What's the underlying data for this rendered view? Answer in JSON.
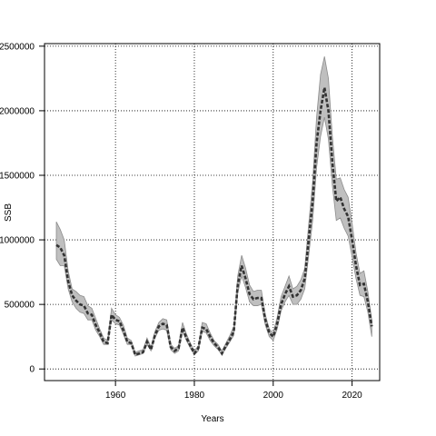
{
  "chart_data": {
    "type": "line",
    "title": "",
    "xlabel": "Years",
    "ylabel": "SSB",
    "xlim": [
      1942,
      2027
    ],
    "ylim": [
      -90000,
      2520000
    ],
    "x_ticks": [
      1960,
      1980,
      2000,
      2020
    ],
    "y_ticks": [
      0,
      500000,
      1000000,
      1500000,
      2000000,
      2500000
    ],
    "y_tick_labels": [
      "0",
      "500000",
      "1000000",
      "1500000",
      "2000000",
      "2500000"
    ],
    "grid": true,
    "grid_style": "dotted",
    "colors": {
      "line": "#333333",
      "band": "#bfbfbf",
      "band_edge": "#8c8c8c",
      "frame": "#000000"
    },
    "series": [
      {
        "line_style": "dashed",
        "x": [
          1945,
          1946,
          1947,
          1948,
          1949,
          1950,
          1951,
          1952,
          1953,
          1954,
          1955,
          1956,
          1957,
          1958,
          1959,
          1960,
          1961,
          1962,
          1963,
          1964,
          1965,
          1966,
          1967,
          1968,
          1969,
          1970,
          1971,
          1972,
          1973,
          1974,
          1975,
          1976,
          1977,
          1978,
          1979,
          1980,
          1981,
          1982,
          1983,
          1984,
          1985,
          1986,
          1987,
          1988,
          1989,
          1990,
          1991,
          1992,
          1993,
          1994,
          1995,
          1996,
          1997,
          1998,
          1999,
          2000,
          2001,
          2002,
          2003,
          2004,
          2005,
          2006,
          2007,
          2008,
          2009,
          2010,
          2011,
          2012,
          2013,
          2014,
          2015,
          2016,
          2017,
          2018,
          2019,
          2020,
          2021,
          2022,
          2023,
          2024,
          2025
        ],
        "values": [
          960000,
          940000,
          880000,
          680000,
          570000,
          530000,
          500000,
          490000,
          430000,
          420000,
          340000,
          280000,
          210000,
          200000,
          420000,
          380000,
          370000,
          300000,
          210000,
          200000,
          110000,
          120000,
          130000,
          210000,
          150000,
          260000,
          330000,
          350000,
          340000,
          170000,
          140000,
          160000,
          320000,
          240000,
          180000,
          120000,
          160000,
          320000,
          310000,
          250000,
          200000,
          170000,
          120000,
          180000,
          230000,
          290000,
          650000,
          800000,
          700000,
          580000,
          540000,
          550000,
          550000,
          380000,
          280000,
          250000,
          350000,
          500000,
          580000,
          640000,
          560000,
          570000,
          610000,
          700000,
          1000000,
          1300000,
          1750000,
          2000000,
          2180000,
          2000000,
          1600000,
          1300000,
          1330000,
          1240000,
          1180000,
          1000000,
          800000,
          650000,
          660000,
          520000,
          330000
        ],
        "lower": [
          850000,
          800000,
          800000,
          620000,
          520000,
          470000,
          440000,
          430000,
          380000,
          380000,
          300000,
          250000,
          190000,
          190000,
          380000,
          350000,
          340000,
          270000,
          190000,
          190000,
          100000,
          110000,
          120000,
          190000,
          140000,
          240000,
          300000,
          310000,
          300000,
          150000,
          120000,
          140000,
          290000,
          220000,
          160000,
          110000,
          140000,
          290000,
          280000,
          220000,
          180000,
          150000,
          110000,
          160000,
          210000,
          260000,
          590000,
          720000,
          630000,
          520000,
          490000,
          490000,
          500000,
          340000,
          250000,
          220000,
          310000,
          450000,
          520000,
          570000,
          500000,
          500000,
          540000,
          620000,
          880000,
          1150000,
          1560000,
          1800000,
          1950000,
          1780000,
          1420000,
          1150000,
          1170000,
          1090000,
          1030000,
          870000,
          700000,
          570000,
          560000,
          440000,
          250000
        ],
        "upper": [
          1140000,
          1080000,
          1000000,
          760000,
          620000,
          600000,
          570000,
          560000,
          490000,
          470000,
          390000,
          310000,
          240000,
          220000,
          470000,
          420000,
          400000,
          340000,
          240000,
          220000,
          130000,
          140000,
          150000,
          240000,
          170000,
          290000,
          360000,
          390000,
          380000,
          190000,
          160000,
          180000,
          360000,
          270000,
          200000,
          140000,
          180000,
          360000,
          350000,
          280000,
          220000,
          190000,
          140000,
          200000,
          260000,
          330000,
          720000,
          880000,
          780000,
          650000,
          600000,
          610000,
          610000,
          420000,
          310000,
          280000,
          400000,
          560000,
          640000,
          720000,
          620000,
          640000,
          690000,
          780000,
          1120000,
          1450000,
          1950000,
          2280000,
          2420000,
          2250000,
          1800000,
          1470000,
          1480000,
          1390000,
          1330000,
          1130000,
          900000,
          740000,
          760000,
          600000,
          380000
        ]
      }
    ]
  }
}
